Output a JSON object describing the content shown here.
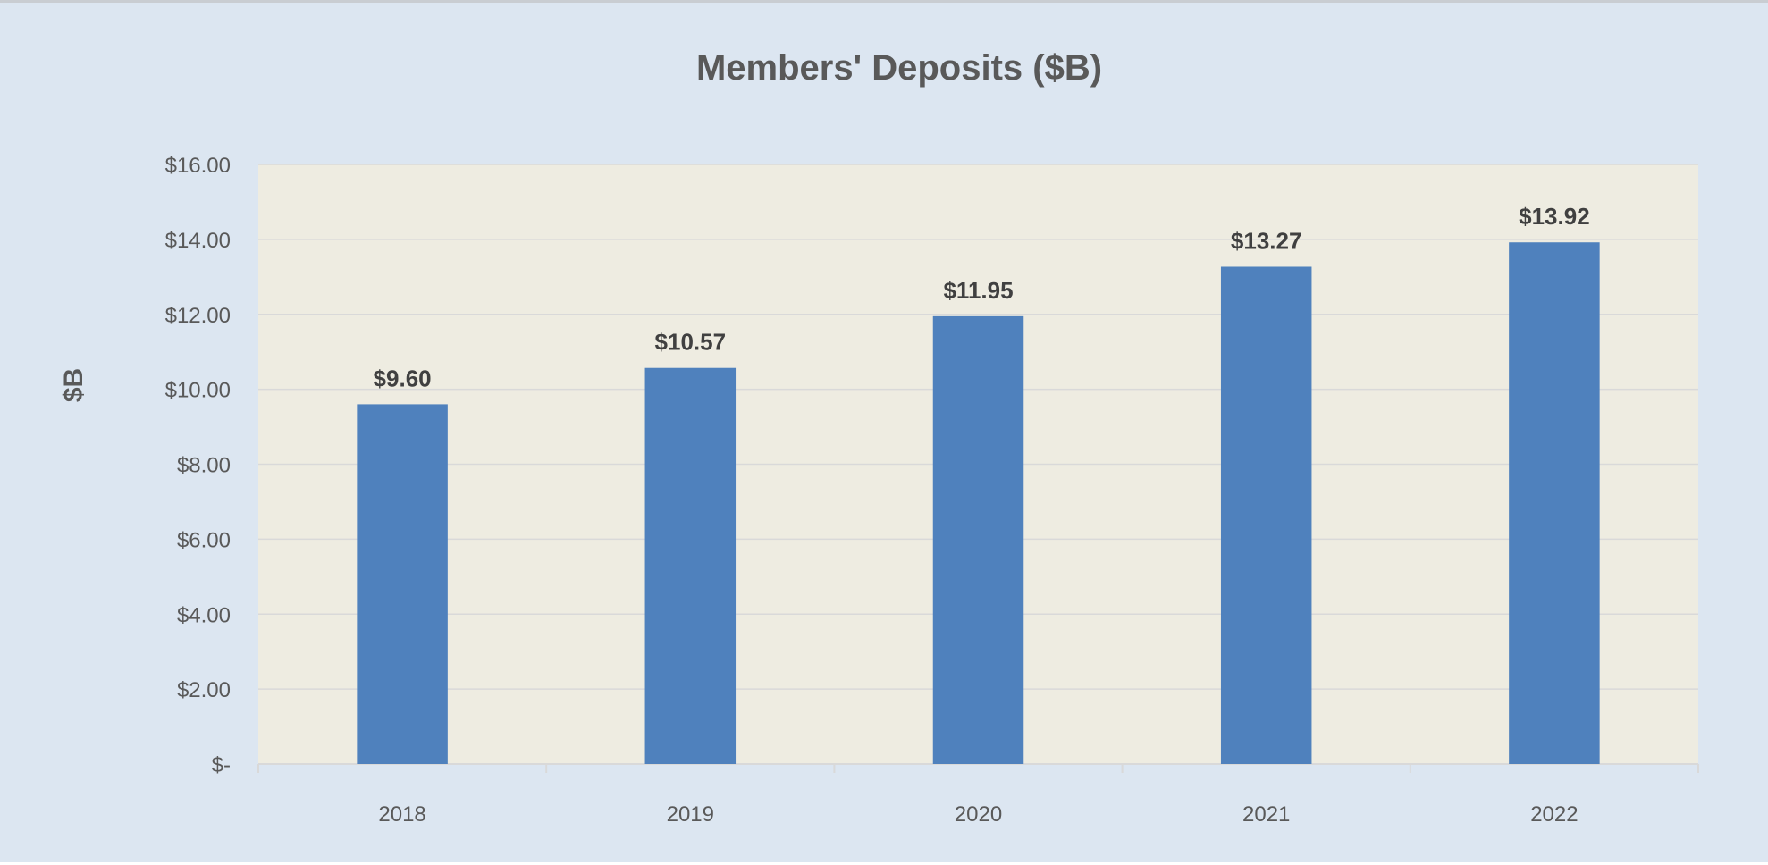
{
  "chart_data": {
    "type": "bar",
    "title": "Members' Deposits ($B)",
    "xlabel": "",
    "ylabel": "$B",
    "categories": [
      "2018",
      "2019",
      "2020",
      "2021",
      "2022"
    ],
    "values": [
      9.6,
      10.57,
      11.95,
      13.27,
      13.92
    ],
    "data_labels": [
      "$9.60",
      "$10.57",
      "$11.95",
      "$13.27",
      "$13.92"
    ],
    "ylim": [
      0,
      16
    ],
    "yticks": [
      0,
      2,
      4,
      6,
      8,
      10,
      12,
      14,
      16
    ],
    "ytick_labels": [
      "$-",
      "$2.00",
      "$4.00",
      "$6.00",
      "$8.00",
      "$10.00",
      "$12.00",
      "$14.00",
      "$16.00"
    ],
    "grid": true,
    "legend": "none",
    "colors": {
      "bar": "#4f81bd",
      "plot_background": "#eeece1",
      "chart_background": "#dce6f1",
      "gridline": "#d9d9d9",
      "text": "#595959"
    }
  }
}
